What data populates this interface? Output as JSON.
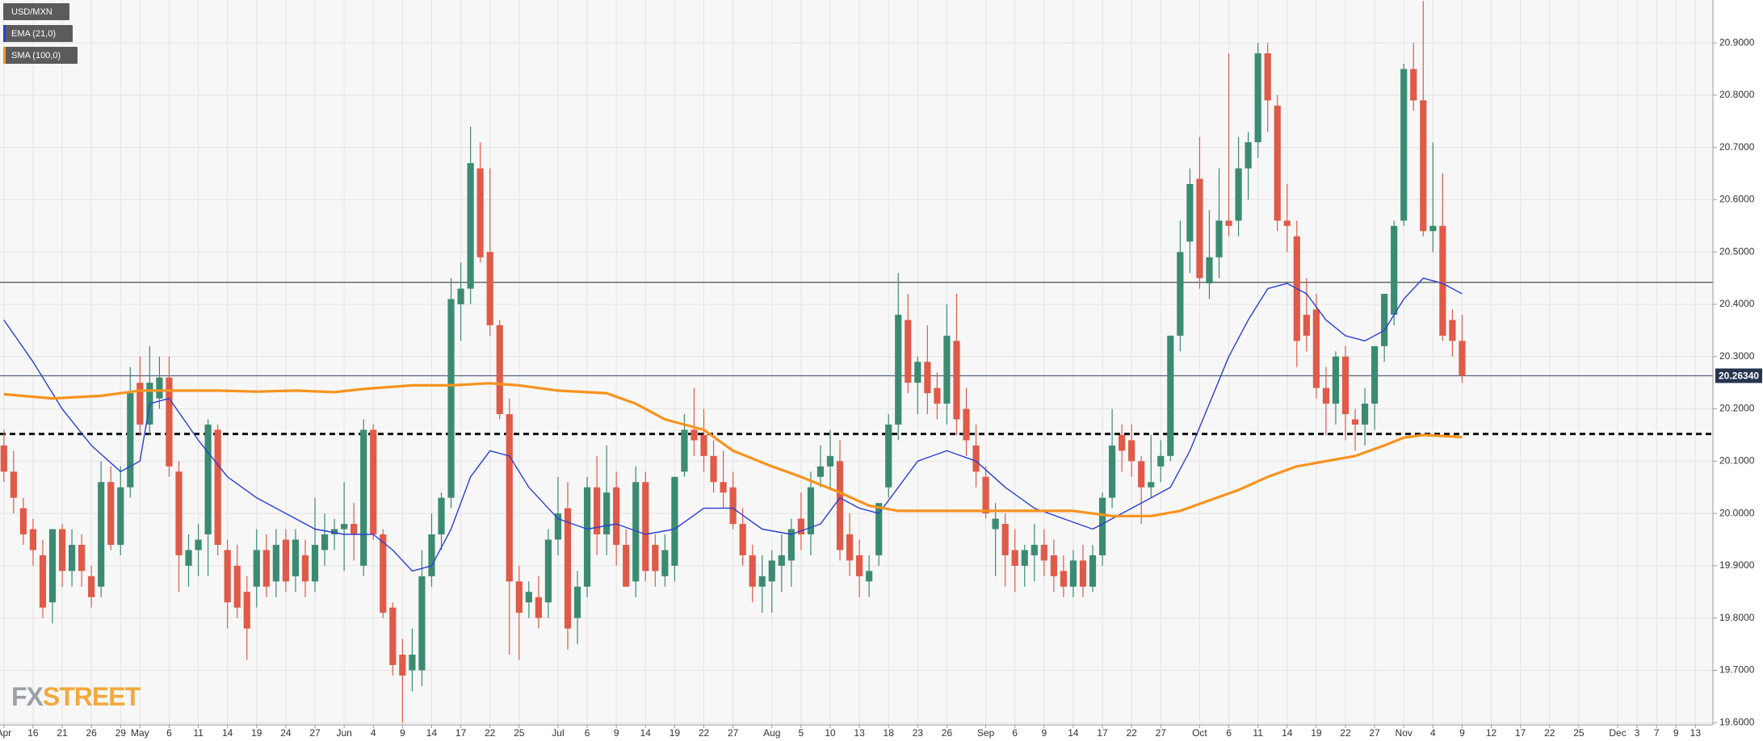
{
  "chart_data": {
    "type": "candlestick",
    "candles": {
      "name": "USD/MXN",
      "up_color": "#3b8b72",
      "down_color": "#df5a48",
      "open": [
        20.13,
        20.08,
        20.01,
        19.97,
        19.92,
        19.83,
        19.97,
        19.89,
        19.94,
        19.88,
        19.86,
        20.06,
        19.94,
        20.05,
        20.25,
        20.17,
        20.22,
        20.26,
        20.08,
        19.9,
        19.93,
        19.96,
        20.16,
        19.93,
        19.9,
        19.85,
        19.86,
        19.93,
        19.87,
        19.95,
        19.88,
        19.92,
        19.87,
        19.93,
        19.96,
        19.97,
        19.98,
        19.9,
        20.16,
        19.96,
        19.82,
        19.73,
        19.7,
        19.7,
        19.88,
        19.96,
        20.03,
        20.4,
        20.43,
        20.66,
        20.5,
        20.36,
        20.19,
        19.87,
        19.83,
        19.84,
        19.83,
        19.95,
        20.01,
        19.8,
        19.86,
        20.05,
        19.96,
        20.05,
        19.94,
        19.87,
        20.06,
        19.94,
        19.88,
        19.9,
        20.08,
        20.16,
        20.15,
        20.11,
        20.06,
        20.05,
        19.98,
        19.92,
        19.86,
        19.87,
        19.9,
        19.91,
        19.99,
        19.96,
        20.07,
        20.09,
        20.1,
        19.96,
        19.92,
        19.87,
        19.92,
        20.05,
        20.17,
        20.37,
        20.25,
        20.29,
        20.24,
        20.21,
        20.33,
        20.2,
        20.13,
        20.07,
        19.97,
        19.98,
        19.93,
        19.9,
        19.92,
        19.94,
        19.92,
        19.89,
        19.86,
        19.91,
        19.86,
        19.92,
        20.03,
        20.15,
        20.14,
        20.1,
        20.05,
        20.09,
        20.11,
        20.34,
        20.52,
        20.64,
        20.44,
        20.49,
        20.56,
        20.56,
        20.66,
        20.71,
        20.88,
        20.78,
        20.56,
        20.53,
        20.38,
        20.39,
        20.24,
        20.21,
        20.3,
        20.18,
        20.17,
        20.21,
        20.32,
        20.38,
        20.56,
        20.85,
        20.79,
        20.54,
        20.55,
        20.37,
        20.33
      ],
      "high": [
        20.16,
        20.12,
        20.03,
        19.99,
        19.95,
        19.97,
        19.98,
        19.97,
        19.96,
        19.9,
        20.1,
        20.09,
        20.09,
        20.28,
        20.3,
        20.32,
        20.3,
        20.3,
        20.1,
        19.96,
        19.98,
        20.18,
        20.17,
        19.95,
        19.94,
        19.88,
        19.97,
        19.96,
        19.97,
        19.97,
        19.97,
        19.95,
        20.03,
        20.0,
        19.99,
        20.06,
        20.02,
        20.18,
        20.17,
        19.97,
        19.83,
        19.76,
        19.78,
        19.93,
        20.0,
        20.04,
        20.45,
        20.48,
        20.74,
        20.71,
        20.66,
        20.37,
        20.22,
        19.9,
        19.87,
        19.88,
        19.97,
        20.07,
        20.06,
        19.89,
        20.07,
        20.11,
        20.13,
        20.08,
        19.97,
        20.09,
        20.08,
        19.96,
        19.96,
        20.07,
        20.19,
        20.24,
        20.2,
        20.14,
        20.12,
        20.08,
        20.01,
        19.94,
        19.92,
        19.93,
        19.96,
        19.99,
        20.04,
        20.08,
        20.13,
        20.16,
        20.14,
        20.0,
        19.95,
        19.92,
        20.02,
        20.19,
        20.46,
        20.42,
        20.3,
        20.36,
        20.27,
        20.4,
        20.42,
        20.24,
        20.17,
        20.09,
        20.02,
        20.0,
        19.97,
        19.94,
        19.98,
        19.97,
        19.95,
        19.92,
        19.93,
        19.94,
        19.94,
        20.04,
        20.2,
        20.17,
        20.17,
        20.11,
        20.15,
        20.14,
        20.34,
        20.56,
        20.66,
        20.72,
        20.58,
        20.66,
        20.88,
        20.72,
        20.73,
        20.9,
        20.9,
        20.8,
        20.63,
        20.56,
        20.45,
        20.42,
        20.28,
        20.31,
        20.32,
        20.2,
        20.24,
        20.32,
        20.42,
        20.56,
        20.86,
        20.9,
        20.98,
        20.71,
        20.65,
        20.39,
        20.38
      ],
      "low": [
        20.06,
        20.0,
        19.94,
        19.9,
        19.8,
        19.79,
        19.86,
        19.86,
        19.86,
        19.82,
        19.84,
        19.93,
        19.92,
        20.03,
        20.15,
        20.15,
        20.2,
        20.07,
        19.85,
        19.86,
        19.88,
        19.88,
        19.92,
        19.78,
        19.8,
        19.72,
        19.82,
        19.84,
        19.84,
        19.85,
        19.85,
        19.84,
        19.85,
        19.9,
        19.93,
        19.89,
        19.91,
        19.88,
        19.95,
        19.8,
        19.69,
        19.6,
        19.66,
        19.67,
        19.86,
        19.93,
        20.01,
        20.33,
        20.4,
        20.48,
        20.34,
        20.18,
        19.73,
        19.72,
        19.8,
        19.78,
        19.8,
        19.92,
        19.74,
        19.75,
        19.84,
        19.92,
        19.92,
        19.9,
        19.86,
        19.84,
        19.87,
        19.86,
        19.86,
        19.87,
        20.07,
        20.11,
        20.08,
        20.04,
        20.01,
        19.97,
        19.9,
        19.83,
        19.81,
        19.81,
        19.85,
        19.86,
        19.93,
        19.92,
        20.05,
        20.05,
        19.91,
        19.88,
        19.84,
        19.84,
        19.9,
        20.03,
        20.14,
        20.23,
        20.19,
        20.19,
        20.18,
        20.17,
        20.15,
        20.11,
        20.05,
        19.99,
        19.88,
        19.86,
        19.85,
        19.86,
        19.87,
        19.88,
        19.85,
        19.84,
        19.84,
        19.84,
        19.85,
        19.9,
        20.01,
        20.08,
        20.07,
        19.98,
        20.03,
        20.06,
        20.1,
        20.31,
        20.46,
        20.43,
        20.41,
        20.45,
        20.53,
        20.53,
        20.6,
        20.68,
        20.73,
        20.54,
        20.5,
        20.28,
        20.31,
        20.22,
        20.15,
        20.17,
        20.14,
        20.12,
        20.13,
        20.16,
        20.29,
        20.36,
        20.55,
        20.77,
        20.53,
        20.5,
        20.33,
        20.3,
        20.25
      ],
      "close": [
        20.08,
        20.03,
        19.96,
        19.93,
        19.82,
        19.97,
        19.89,
        19.94,
        19.89,
        19.84,
        20.06,
        19.94,
        20.05,
        20.23,
        20.17,
        20.25,
        20.26,
        20.09,
        19.92,
        19.93,
        19.95,
        20.17,
        19.94,
        19.83,
        19.82,
        19.78,
        19.93,
        19.86,
        19.94,
        19.87,
        19.95,
        19.87,
        19.94,
        19.96,
        19.97,
        19.98,
        19.96,
        20.16,
        19.96,
        19.81,
        19.71,
        19.69,
        19.73,
        19.88,
        19.96,
        20.03,
        20.41,
        20.43,
        20.67,
        20.49,
        20.36,
        20.19,
        19.87,
        19.81,
        19.85,
        19.8,
        19.95,
        20.0,
        19.78,
        19.86,
        20.05,
        19.96,
        20.04,
        19.94,
        19.86,
        20.06,
        19.89,
        19.89,
        19.93,
        20.07,
        20.16,
        20.14,
        20.11,
        20.06,
        20.04,
        19.98,
        19.92,
        19.86,
        19.88,
        19.91,
        19.92,
        19.97,
        19.96,
        20.05,
        20.09,
        20.11,
        19.93,
        19.91,
        19.88,
        19.89,
        20.02,
        20.17,
        20.38,
        20.25,
        20.29,
        20.23,
        20.21,
        20.34,
        20.18,
        20.14,
        20.08,
        20.0,
        19.99,
        19.92,
        19.9,
        19.93,
        19.94,
        19.91,
        19.88,
        19.86,
        19.91,
        19.86,
        19.92,
        20.03,
        20.13,
        20.12,
        20.1,
        20.05,
        20.06,
        20.11,
        20.34,
        20.5,
        20.63,
        20.45,
        20.49,
        20.56,
        20.55,
        20.66,
        20.71,
        20.88,
        20.79,
        20.56,
        20.55,
        20.33,
        20.34,
        20.24,
        20.21,
        20.3,
        20.19,
        20.17,
        20.21,
        20.32,
        20.42,
        20.55,
        20.85,
        20.79,
        20.54,
        20.55,
        20.34,
        20.33,
        20.2634
      ]
    },
    "series": [
      {
        "name": "EMA (21,0)",
        "color": "#2b3fd6",
        "width": 1.4,
        "x": [
          0,
          3,
          6,
          9,
          12,
          14,
          15,
          17,
          20,
          23,
          26,
          29,
          32,
          35,
          38,
          40,
          42,
          44,
          46,
          48,
          50,
          52,
          54,
          57,
          60,
          63,
          66,
          69,
          72,
          75,
          78,
          81,
          84,
          86,
          88,
          90,
          92,
          94,
          97,
          100,
          103,
          106,
          109,
          112,
          114,
          117,
          120,
          122,
          124,
          126,
          128,
          130,
          132,
          134,
          136,
          138,
          140,
          142,
          144,
          146,
          148,
          150
        ],
        "values": [
          20.37,
          20.29,
          20.2,
          20.13,
          20.08,
          20.1,
          20.21,
          20.22,
          20.14,
          20.07,
          20.03,
          20.0,
          19.97,
          19.96,
          19.96,
          19.93,
          19.89,
          19.9,
          19.97,
          20.07,
          20.12,
          20.11,
          20.05,
          19.99,
          19.97,
          19.98,
          19.96,
          19.97,
          20.01,
          20.01,
          19.97,
          19.96,
          19.98,
          20.03,
          20.01,
          20.0,
          20.05,
          20.1,
          20.12,
          20.1,
          20.05,
          20.01,
          19.99,
          19.97,
          19.99,
          20.02,
          20.05,
          20.12,
          20.21,
          20.3,
          20.37,
          20.43,
          20.44,
          20.42,
          20.37,
          20.34,
          20.33,
          20.35,
          20.41,
          20.45,
          20.44,
          20.42
        ]
      },
      {
        "name": "SMA (100,0)",
        "color": "#f7931e",
        "width": 3.2,
        "x": [
          0,
          5,
          10,
          14,
          18,
          22,
          26,
          30,
          34,
          37,
          42,
          46,
          50,
          53,
          57,
          62,
          65,
          68,
          72,
          75,
          79,
          82,
          86,
          89,
          92,
          96,
          100,
          105,
          110,
          114,
          118,
          121,
          124,
          127,
          130,
          133,
          136,
          139,
          142,
          144,
          146,
          148,
          150
        ],
        "values": [
          20.228,
          20.22,
          20.225,
          20.235,
          20.235,
          20.235,
          20.233,
          20.235,
          20.232,
          20.238,
          20.245,
          20.245,
          20.249,
          20.245,
          20.235,
          20.23,
          20.21,
          20.18,
          20.16,
          20.12,
          20.09,
          20.07,
          20.04,
          20.015,
          20.005,
          20.005,
          20.005,
          20.005,
          20.005,
          19.995,
          19.995,
          20.005,
          20.025,
          20.045,
          20.07,
          20.09,
          20.1,
          20.11,
          20.13,
          20.145,
          20.15,
          20.148,
          20.146
        ]
      }
    ],
    "reference_lines": [
      {
        "value": 20.442,
        "color": "#3a3a3a",
        "style": "solid"
      },
      {
        "value": 20.2634,
        "label": "20.26340",
        "color": "#56667a",
        "style": "solid"
      },
      {
        "value": 20.152,
        "color": "#111111",
        "style": "dashed"
      }
    ],
    "xlim": [
      -0.4,
      175.8
    ],
    "xticks": [
      {
        "value": 0,
        "label": "Apr"
      },
      {
        "value": 3,
        "label": "16"
      },
      {
        "value": 6,
        "label": "21"
      },
      {
        "value": 9,
        "label": "26"
      },
      {
        "value": 12,
        "label": "29"
      },
      {
        "value": 14,
        "label": "May"
      },
      {
        "value": 17,
        "label": "6"
      },
      {
        "value": 20,
        "label": "11"
      },
      {
        "value": 23,
        "label": "14"
      },
      {
        "value": 26,
        "label": "19"
      },
      {
        "value": 29,
        "label": "24"
      },
      {
        "value": 32,
        "label": "27"
      },
      {
        "value": 35,
        "label": "Jun"
      },
      {
        "value": 38,
        "label": "4"
      },
      {
        "value": 41,
        "label": "9"
      },
      {
        "value": 44,
        "label": "14"
      },
      {
        "value": 47,
        "label": "17"
      },
      {
        "value": 50,
        "label": "22"
      },
      {
        "value": 53,
        "label": "25"
      },
      {
        "value": 57,
        "label": "Jul"
      },
      {
        "value": 60,
        "label": "6"
      },
      {
        "value": 63,
        "label": "9"
      },
      {
        "value": 66,
        "label": "14"
      },
      {
        "value": 69,
        "label": "19"
      },
      {
        "value": 72,
        "label": "22"
      },
      {
        "value": 75,
        "label": "27"
      },
      {
        "value": 79,
        "label": "Aug"
      },
      {
        "value": 82,
        "label": "5"
      },
      {
        "value": 85,
        "label": "10"
      },
      {
        "value": 88,
        "label": "13"
      },
      {
        "value": 91,
        "label": "18"
      },
      {
        "value": 94,
        "label": "23"
      },
      {
        "value": 97,
        "label": "26"
      },
      {
        "value": 101,
        "label": "Sep"
      },
      {
        "value": 104,
        "label": "6"
      },
      {
        "value": 107,
        "label": "9"
      },
      {
        "value": 110,
        "label": "14"
      },
      {
        "value": 113,
        "label": "17"
      },
      {
        "value": 116,
        "label": "22"
      },
      {
        "value": 119,
        "label": "27"
      },
      {
        "value": 123,
        "label": "Oct"
      },
      {
        "value": 126,
        "label": "6"
      },
      {
        "value": 129,
        "label": "11"
      },
      {
        "value": 132,
        "label": "14"
      },
      {
        "value": 135,
        "label": "19"
      },
      {
        "value": 138,
        "label": "22"
      },
      {
        "value": 141,
        "label": "27"
      },
      {
        "value": 144,
        "label": "Nov"
      },
      {
        "value": 147,
        "label": "4"
      },
      {
        "value": 150,
        "label": "9"
      },
      {
        "value": 153,
        "label": "12"
      },
      {
        "value": 156,
        "label": "17"
      },
      {
        "value": 159,
        "label": "22"
      },
      {
        "value": 162,
        "label": "25"
      },
      {
        "value": 166,
        "label": "Dec"
      },
      {
        "value": 168,
        "label": "3"
      },
      {
        "value": 170,
        "label": "7"
      },
      {
        "value": 172,
        "label": "9"
      },
      {
        "value": 174,
        "label": "13"
      }
    ],
    "ylim": [
      19.5957,
      20.982
    ],
    "yticks": [
      {
        "value": 19.6,
        "label": "19.6000"
      },
      {
        "value": 19.7,
        "label": "19.7000"
      },
      {
        "value": 19.8,
        "label": "19.8000"
      },
      {
        "value": 19.9,
        "label": "19.9000"
      },
      {
        "value": 20.0,
        "label": "20.0000"
      },
      {
        "value": 20.1,
        "label": "20.1000"
      },
      {
        "value": 20.2,
        "label": "20.2000"
      },
      {
        "value": 20.3,
        "label": "20.3000"
      },
      {
        "value": 20.4,
        "label": "20.4000"
      },
      {
        "value": 20.5,
        "label": "20.5000"
      },
      {
        "value": 20.6,
        "label": "20.6000"
      },
      {
        "value": 20.7,
        "label": "20.7000"
      },
      {
        "value": 20.8,
        "label": "20.8000"
      },
      {
        "value": 20.9,
        "label": "20.9000"
      }
    ],
    "grid": true,
    "legend": "top-left",
    "watermark_fx": "FX",
    "watermark_street": "STREET"
  }
}
